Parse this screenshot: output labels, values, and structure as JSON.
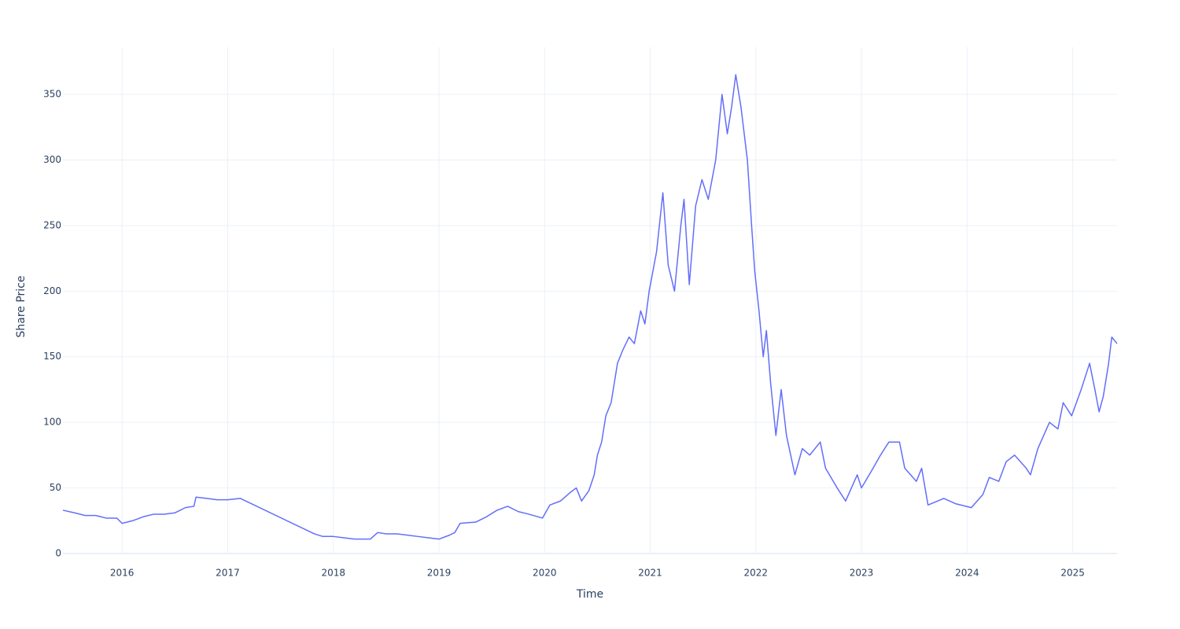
{
  "chart_data": {
    "type": "line",
    "x_label": "Time",
    "y_label": "Share Price",
    "color": "#636efa",
    "grid": true,
    "x": [
      2015.44,
      2015.55,
      2015.65,
      2015.75,
      2015.85,
      2015.95,
      2016.0,
      2016.1,
      2016.2,
      2016.3,
      2016.4,
      2016.5,
      2016.6,
      2016.68,
      2016.7,
      2016.8,
      2016.9,
      2017.0,
      2017.12,
      2017.82,
      2017.9,
      2018.0,
      2018.1,
      2018.2,
      2018.35,
      2018.42,
      2018.5,
      2018.6,
      2018.7,
      2018.8,
      2018.9,
      2019.0,
      2019.1,
      2019.15,
      2019.2,
      2019.35,
      2019.45,
      2019.55,
      2019.65,
      2019.75,
      2019.85,
      2019.98,
      2020.05,
      2020.15,
      2020.25,
      2020.3,
      2020.35,
      2020.42,
      2020.47,
      2020.5,
      2020.54,
      2020.58,
      2020.63,
      2020.69,
      2020.74,
      2020.8,
      2020.85,
      2020.91,
      2020.95,
      2020.99,
      2021.06,
      2021.12,
      2021.17,
      2021.23,
      2021.29,
      2021.32,
      2021.37,
      2021.43,
      2021.49,
      2021.55,
      2021.62,
      2021.68,
      2021.73,
      2021.77,
      2021.81,
      2021.86,
      2021.92,
      2021.96,
      2021.99,
      2022.03,
      2022.07,
      2022.1,
      2022.14,
      2022.19,
      2022.24,
      2022.29,
      2022.37,
      2022.44,
      2022.51,
      2022.61,
      2022.66,
      2022.77,
      2022.85,
      2022.96,
      2023.0,
      2023.11,
      2023.18,
      2023.26,
      2023.36,
      2023.41,
      2023.52,
      2023.57,
      2023.63,
      2023.78,
      2023.89,
      2024.04,
      2024.15,
      2024.21,
      2024.3,
      2024.37,
      2024.45,
      2024.56,
      2024.6,
      2024.67,
      2024.78,
      2024.86,
      2024.91,
      2024.99,
      2025.08,
      2025.16,
      2025.21,
      2025.25,
      2025.29,
      2025.34,
      2025.37,
      2025.42
    ],
    "values": [
      33,
      31,
      29,
      29,
      27,
      27,
      23,
      25,
      28,
      30,
      30,
      31,
      35,
      36,
      43,
      42,
      41,
      41,
      42,
      15,
      13,
      13,
      12,
      11,
      11,
      16,
      15,
      15,
      14,
      13,
      12,
      11,
      14,
      16,
      23,
      24,
      28,
      33,
      36,
      32,
      30,
      27,
      37,
      40,
      47,
      50,
      40,
      48,
      60,
      75,
      85,
      105,
      115,
      145,
      155,
      165,
      160,
      185,
      175,
      200,
      230,
      275,
      220,
      200,
      250,
      270,
      205,
      265,
      285,
      270,
      300,
      350,
      320,
      340,
      365,
      340,
      300,
      250,
      215,
      185,
      150,
      170,
      130,
      90,
      125,
      90,
      60,
      80,
      75,
      85,
      65,
      50,
      40,
      60,
      50,
      65,
      75,
      85,
      85,
      65,
      55,
      65,
      37,
      42,
      38,
      35,
      45,
      58,
      55,
      70,
      75,
      65,
      60,
      80,
      100,
      95,
      115,
      105,
      125,
      145,
      125,
      108,
      120,
      145,
      165,
      160
    ],
    "xlim": [
      2015.44,
      2025.42
    ],
    "ylim": [
      0,
      386
    ],
    "xticks": [
      2016,
      2017,
      2018,
      2019,
      2020,
      2021,
      2022,
      2023,
      2024,
      2025
    ],
    "yticks": [
      0,
      50,
      100,
      150,
      200,
      250,
      300,
      350
    ]
  }
}
